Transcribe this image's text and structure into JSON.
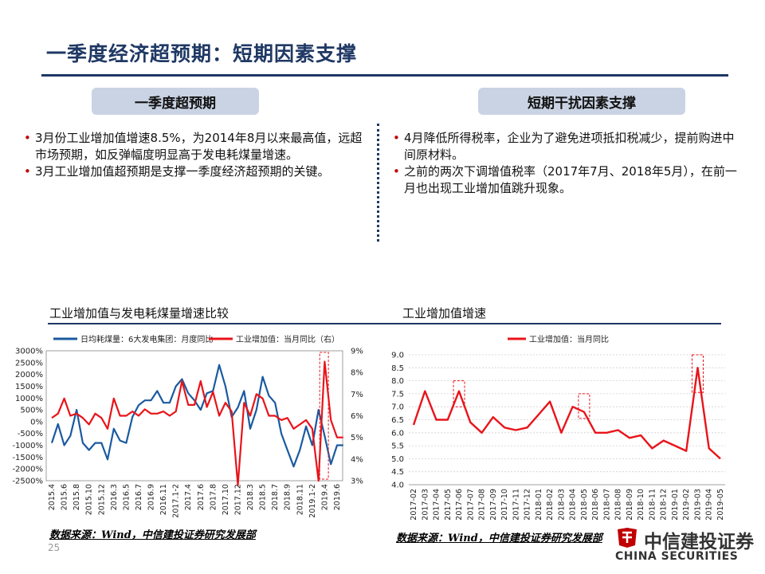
{
  "header": {
    "title": "一季度经济超预期：短期因素支撑"
  },
  "left_panel": {
    "pill_label": "一季度超预期",
    "bullets": [
      "3月份工业增加值增速8.5%，为2014年8月以来最高值，远超市场预期，如反弹幅度明显高于发电耗煤量增速。",
      "3月工业增加值超预期是支撑一季度经济超预期的关键。"
    ]
  },
  "right_panel": {
    "pill_label": "短期干扰因素支撑",
    "bullets": [
      "4月降低所得税率，企业为了避免进项抵扣税减少，提前购进中间原材料。",
      "之前的两次下调增值税率（2017年7月、2018年5月），在前一月也出现工业增加值跳升现象。"
    ]
  },
  "chart_titles": {
    "left": "工业增加值与发电耗煤量增速比较",
    "right": "工业增加值增速"
  },
  "sources": {
    "left": "数据来源：Wind，中信建投证券研究发展部",
    "right": "数据来源：Wind，中信建投证券研究发展部"
  },
  "page_number": "25",
  "logo": {
    "cn": "中信建投证券",
    "en": "CHINA SECURITIES"
  },
  "colors": {
    "navy": "#1f3864",
    "blue_series": "#1a5aa0",
    "red_series": "#e8141a",
    "pill_bg": "#c9d3e3"
  },
  "chart_data": [
    {
      "type": "line",
      "title": "",
      "x_ticks": [
        "2015.4",
        "2015.6",
        "2015.8",
        "2015.10",
        "2015.12",
        "2016.3",
        "2016.5",
        "2016.7",
        "2016.9",
        "2016.11",
        "2017.1-2",
        "2017.4",
        "2017.6",
        "2017.8",
        "2017.10",
        "2017.12",
        "2018.3",
        "2018.5",
        "2018.7",
        "2018.9",
        "2018.11",
        "2019.1-2",
        "2019.4",
        "2019.6"
      ],
      "y_left": {
        "ticks": [
          "3000%",
          "2500%",
          "2000%",
          "1500%",
          "1000%",
          "500%",
          "0%",
          "-500%",
          "-1000%",
          "-1500%",
          "-2000%",
          "-2500%"
        ],
        "min": -2500,
        "max": 3000
      },
      "y_right": {
        "ticks": [
          "9%",
          "8%",
          "7%",
          "6%",
          "5%",
          "4%",
          "3%"
        ],
        "min": 3,
        "max": 9
      },
      "series": [
        {
          "name": "日均耗煤量：6大发电集团：月度同比",
          "axis": "left",
          "x": [
            0,
            0.5,
            1,
            1.5,
            2,
            2.5,
            3,
            3.5,
            4,
            4.5,
            5,
            5.5,
            6,
            6.5,
            7,
            7.5,
            8,
            8.5,
            9,
            9.5,
            10,
            10.5,
            11,
            11.5,
            12,
            12.5,
            13,
            13.5,
            14,
            14.5,
            15,
            15.5,
            16,
            16.5,
            17,
            17.5,
            18,
            18.5,
            19,
            19.5,
            20,
            20.5,
            21,
            21.5,
            22,
            22.5,
            23,
            23.5
          ],
          "values": [
            -900,
            -100,
            -1000,
            -600,
            500,
            -900,
            -1200,
            -900,
            -900,
            -1600,
            -300,
            -800,
            -900,
            200,
            700,
            900,
            900,
            1300,
            800,
            800,
            1500,
            1800,
            1200,
            900,
            500,
            1200,
            1300,
            2400,
            1500,
            200,
            600,
            1300,
            -300,
            500,
            1900,
            1100,
            800,
            -500,
            -1200,
            -1900,
            -1200,
            -200,
            -1000,
            500,
            -600,
            -1800,
            -1000,
            -1000
          ]
        },
        {
          "name": "工业增加值：当月同比（右）",
          "axis": "right",
          "x": [
            0,
            0.5,
            1,
            1.5,
            2,
            2.5,
            3,
            3.5,
            4,
            4.5,
            5,
            5.5,
            6,
            6.5,
            7,
            7.5,
            8,
            8.5,
            9,
            9.5,
            10,
            10.5,
            11,
            11.5,
            12,
            12.5,
            13,
            13.5,
            14,
            14.5,
            15,
            15.5,
            16,
            16.5,
            17,
            17.5,
            18,
            18.5,
            19,
            19.5,
            20,
            20.5,
            21,
            21.5,
            22,
            22.5,
            23,
            23.5
          ],
          "values": [
            5.9,
            6.1,
            6.8,
            6.0,
            6.1,
            5.9,
            5.6,
            6.1,
            5.9,
            5.4,
            6.8,
            6.0,
            6.0,
            6.2,
            6.0,
            6.3,
            6.1,
            6.1,
            6.2,
            6.0,
            6.2,
            7.6,
            6.5,
            6.5,
            7.6,
            6.4,
            7.1,
            6.0,
            6.6,
            6.2,
            2.8,
            6.6,
            6.0,
            7.0,
            6.8,
            6.0,
            6.0,
            5.8,
            5.9,
            5.4,
            5.6,
            5.8,
            5.4,
            3.0,
            8.5,
            5.8,
            5.0,
            5.0
          ]
        }
      ],
      "highlight_box_x": [
        21.6,
        22.3
      ]
    },
    {
      "type": "line",
      "title": "",
      "legend": "工业增加值：当月同比",
      "x_ticks": [
        "2017-02",
        "2017-03",
        "2017-04",
        "2017-05",
        "2017-06",
        "2017-07",
        "2017-08",
        "2017-09",
        "2017-10",
        "2017-11",
        "2017-12",
        "2018-01",
        "2018-02",
        "2018-03",
        "2018-04",
        "2018-05",
        "2018-06",
        "2018-07",
        "2018-08",
        "2018-09",
        "2018-10",
        "2018-11",
        "2018-12",
        "2019-01",
        "2019-02",
        "2019-03",
        "2019-04",
        "2019-05"
      ],
      "ylim": [
        4.0,
        9.0
      ],
      "y_ticks": [
        "9.0",
        "8.5",
        "8.0",
        "7.5",
        "7.0",
        "6.5",
        "6.0",
        "5.5",
        "5.0",
        "4.5",
        "4.0"
      ],
      "values": [
        6.3,
        7.6,
        6.5,
        6.5,
        7.6,
        6.4,
        6.0,
        6.6,
        6.2,
        6.1,
        6.2,
        6.7,
        7.2,
        6.0,
        7.0,
        6.8,
        6.0,
        6.0,
        6.1,
        5.8,
        5.9,
        5.4,
        5.7,
        5.5,
        5.3,
        8.5,
        5.4,
        5.0
      ],
      "highlight_boxes": [
        [
          4,
          7.0,
          8.0
        ],
        [
          15,
          6.55,
          7.5
        ],
        [
          25,
          7.55,
          9.0
        ]
      ]
    }
  ]
}
